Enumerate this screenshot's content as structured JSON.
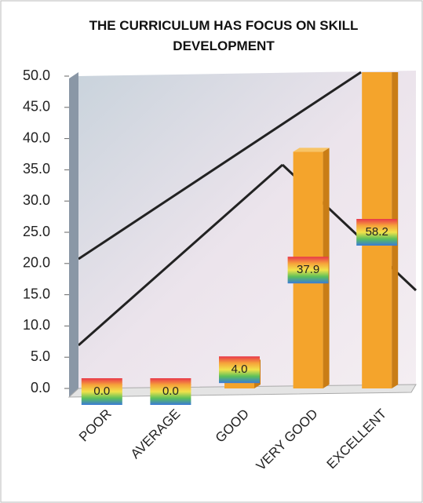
{
  "chart_data": {
    "type": "bar",
    "title": "THE CURRICULUM HAS FOCUS ON SKILL DEVELOPMENT",
    "categories": [
      "POOR",
      "AVERAGE",
      "GOOD",
      "VERY GOOD",
      "EXCELLENT"
    ],
    "values": [
      0,
      0,
      4,
      37.9,
      58.2
    ],
    "value_labels": [
      "0.0",
      "0.0",
      "4.0",
      "37.9",
      "58.2"
    ],
    "color": "#f4a42c",
    "ylim": [
      0,
      50
    ],
    "yticks": [
      {
        "value": 0,
        "label": "0.0"
      },
      {
        "value": 5,
        "label": "5.0"
      },
      {
        "value": 10,
        "label": "10.0"
      },
      {
        "value": 15,
        "label": "15.0"
      },
      {
        "value": 20,
        "label": "20.0"
      },
      {
        "value": 25,
        "label": "25.0"
      },
      {
        "value": 30,
        "label": "30.0"
      },
      {
        "value": 35,
        "label": "35.0"
      },
      {
        "value": 40,
        "label": "40.0"
      },
      {
        "value": 45,
        "label": "45.0"
      },
      {
        "value": 50,
        "label": "50.0"
      }
    ]
  }
}
